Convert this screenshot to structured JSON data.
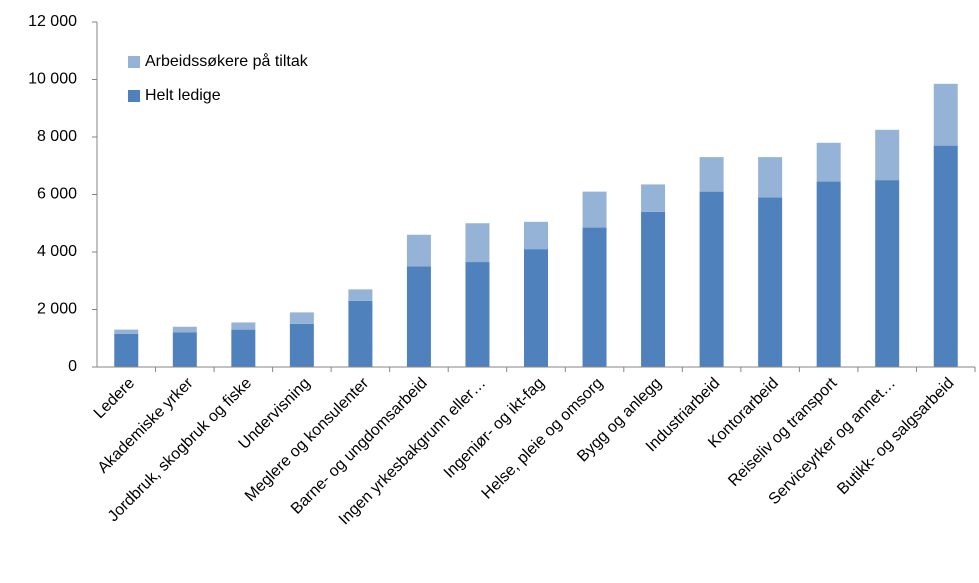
{
  "chart_data": {
    "type": "stacked_bar",
    "categories": [
      "Ledere",
      "Akademiske yrker",
      "Jordbruk, skogbruk og fiske",
      "Undervisning",
      "Meglere og konsulenter",
      "Barne- og ungdomsarbeid",
      "Ingen yrkesbakgrunn eller…",
      "Ingeniør- og ikt-fag",
      "Helse, pleie og omsorg",
      "Bygg og anlegg",
      "Industriarbeid",
      "Kontorarbeid",
      "Reiseliv og transport",
      "Serviceyrker og annet…",
      "Butikk- og salgsarbeid"
    ],
    "series": [
      {
        "name": "Helt ledige",
        "color": "#4f81bd",
        "values": [
          1150,
          1200,
          1300,
          1500,
          2300,
          3500,
          3650,
          4100,
          4850,
          5400,
          6100,
          5900,
          6450,
          6500,
          7700
        ]
      },
      {
        "name": "Arbeidssøkere på tiltak",
        "color": "#95b3d7",
        "values": [
          150,
          200,
          250,
          400,
          400,
          1100,
          1350,
          950,
          1250,
          950,
          1200,
          1400,
          1350,
          1750,
          2150
        ]
      }
    ],
    "ylim": [
      0,
      12000
    ],
    "yticks": [
      0,
      {
        "value": 2000,
        "label": "2 000"
      },
      {
        "value": 4000,
        "label": "4 000"
      },
      {
        "value": 6000,
        "label": "6 000"
      },
      {
        "value": 8000,
        "label": "8 000"
      },
      {
        "value": 10000,
        "label": "10 000"
      },
      {
        "value": 12000,
        "label": "12 000"
      }
    ],
    "legend": "top-left"
  }
}
